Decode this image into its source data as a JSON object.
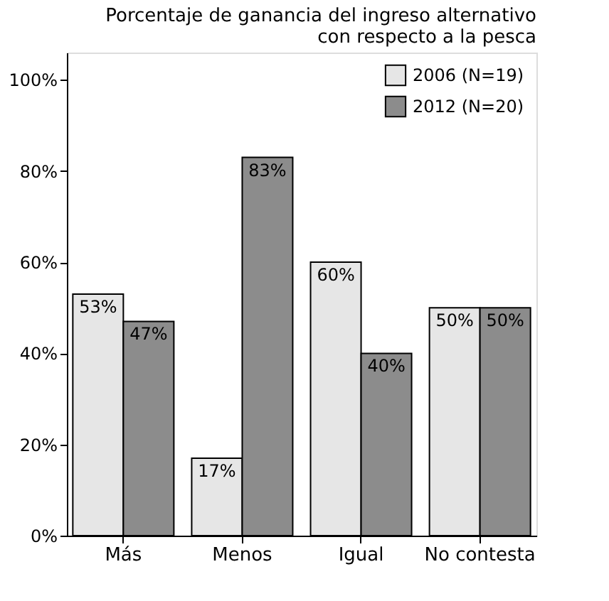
{
  "chart_data": {
    "type": "bar",
    "title": "Porcentaje de ganancia del ingreso alternativo\ncon respecto a la pesca",
    "categories": [
      "Más",
      "Menos",
      "Igual",
      "No contesta"
    ],
    "series": [
      {
        "name": "2006 (N=19)",
        "color": "#e6e6e6",
        "values": [
          53,
          17,
          60,
          50
        ],
        "value_labels": [
          "53%",
          "17%",
          "60%",
          "50%"
        ]
      },
      {
        "name": "2012 (N=20)",
        "color": "#8c8c8c",
        "values": [
          47,
          83,
          40,
          50
        ],
        "value_labels": [
          "47%",
          "83%",
          "40%",
          "50%"
        ]
      }
    ],
    "ylim": [
      0,
      106
    ],
    "yticks": [
      {
        "value": 0,
        "label": "0%"
      },
      {
        "value": 20,
        "label": "20%"
      },
      {
        "value": 40,
        "label": "40%"
      },
      {
        "value": 60,
        "label": "60%"
      },
      {
        "value": 80,
        "label": "80%"
      },
      {
        "value": 100,
        "label": "100%"
      }
    ],
    "grid": false,
    "legend": "top right"
  }
}
